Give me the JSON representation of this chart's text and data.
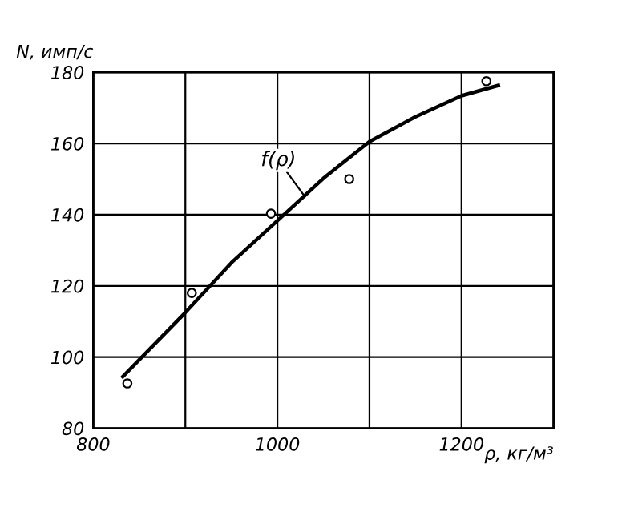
{
  "chart_data": {
    "type": "scatter",
    "xlabel": "ρ, кг/м³",
    "ylabel": "N, имп/с",
    "xlim": [
      800,
      1300
    ],
    "ylim": [
      80,
      180
    ],
    "xticks": [
      800,
      {
        "value": 900,
        "label": null
      },
      1000,
      {
        "value": 1100,
        "label": null
      },
      1200,
      {
        "value": 1300,
        "label": null
      }
    ],
    "yticks": [
      80,
      100,
      120,
      140,
      160,
      180
    ],
    "grid": true,
    "series": [
      {
        "color": "#000000",
        "marker": "circle",
        "x": [
          837,
          907,
          993,
          1078,
          1227
        ],
        "values": [
          92.6,
          118,
          140.3,
          150,
          177.5
        ]
      },
      {
        "type": "line",
        "color": "#000000",
        "marker": "none",
        "line_style": "solid",
        "x": [
          832,
          900,
          950,
          1000,
          1050,
          1100,
          1150,
          1200,
          1240
        ],
        "values": [
          94.5,
          112.5,
          126.5,
          138.3,
          150.2,
          160.5,
          167.5,
          173.4,
          176.3
        ]
      }
    ],
    "annotations": [
      {
        "text": "f(ρ)",
        "x": 1030,
        "y": 145
      }
    ]
  }
}
